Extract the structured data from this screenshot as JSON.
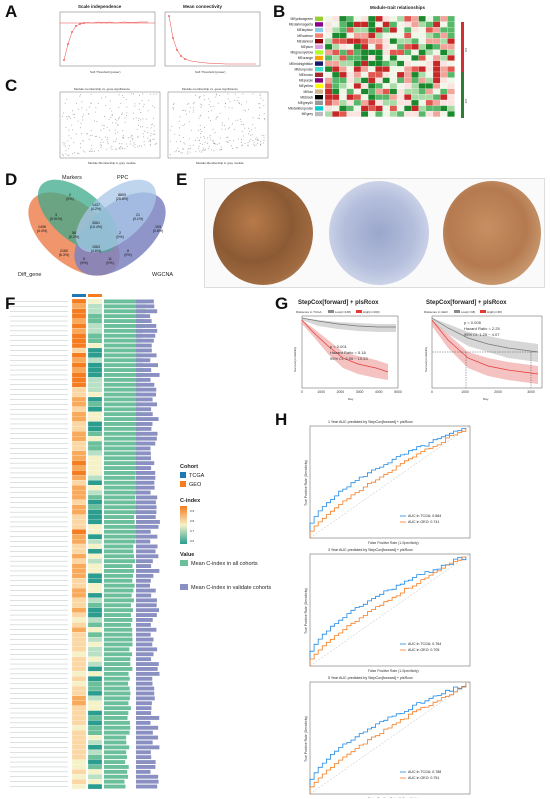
{
  "panels": {
    "A": {
      "label": "A",
      "titles": [
        "Scale independence",
        "Mean connectivity"
      ],
      "xlabels": [
        "Soft Threshold (power)",
        "Soft Threshold (power)"
      ]
    },
    "B": {
      "label": "B",
      "title": "Module-trait relationships",
      "modules": [
        "MEyellowgreen",
        "MEdarkmagenta",
        "MEskyblue",
        "MEsalmon",
        "MEdarkred",
        "MEplum",
        "MEgreenyellow",
        "MEorange",
        "MEmidnightblue",
        "MEturquoise",
        "MEbrown",
        "MEpurple",
        "MEyellow",
        "MEtan",
        "MEblack",
        "MEgrey60",
        "MEdarkturquoise",
        "MEgrey"
      ],
      "colors": [
        "#9acd32",
        "#8b008b",
        "#87ceeb",
        "#fa8072",
        "#8b0000",
        "#dda0dd",
        "#adff2f",
        "#ffa500",
        "#191970",
        "#40e0d0",
        "#a52a2a",
        "#800080",
        "#ffff00",
        "#d2b48c",
        "#000000",
        "#999999",
        "#00ced1",
        "#bbbbbb"
      ]
    },
    "C": {
      "label": "C"
    },
    "D": {
      "label": "D",
      "sets": [
        "Markers",
        "PPC",
        "Diff_gene",
        "WGCNA"
      ],
      "regions": [
        {
          "v": "1496",
          "p": "(4.4%)"
        },
        {
          "v": "0",
          "p": "(0%)"
        },
        {
          "v": "8809",
          "p": "(25.8%)"
        },
        {
          "v": "193",
          "p": "(0.6%)"
        },
        {
          "v": "3",
          "p": "(0.01%)"
        },
        {
          "v": "1437",
          "p": "(4.2%)"
        },
        {
          "v": "21",
          "p": "(0.1%)"
        },
        {
          "v": "58",
          "p": "(0.2%)"
        },
        {
          "v": "2",
          "p": "(0%)"
        },
        {
          "v": "1563",
          "p": "(4.6%)"
        },
        {
          "v": "5",
          "p": "(0%)"
        },
        {
          "v": "11",
          "p": "(0%)"
        },
        {
          "v": "2160",
          "p": "(6.3%)"
        },
        {
          "v": "8",
          "p": "(0%)"
        },
        {
          "v": "3561",
          "p": "(10.4%)"
        }
      ]
    },
    "E": {
      "label": "E"
    },
    "F": {
      "label": "F",
      "legend": {
        "cohort_title": "Cohort",
        "cohort_items": [
          "TCGA",
          "GEO"
        ],
        "cindex_title": "C-index",
        "cindex_ticks": [
          "0.9",
          "0.8",
          "0.7",
          "0.6"
        ],
        "value_title": "Value",
        "value_items": [
          "Mean C-index in all cohorts",
          "Mean C-index in validate cohorts"
        ]
      },
      "col_colors": {
        "tcga": "#1f77b4",
        "geo": "#f57c1f"
      }
    },
    "G": {
      "label": "G",
      "left": {
        "title": "StepCox[forward] + plsRcox",
        "legend": "Riskscore in TCGA",
        "groups": [
          "Low(n=168)",
          "High(n=169)"
        ],
        "stats": [
          "p < 0.001",
          "Hazard Ratio = 5.18",
          "95% CI: 2.55 − 10.53"
        ],
        "xlabel": "Day",
        "ylabel": "Survival probability",
        "xticks": [
          "0",
          "1000",
          "2000",
          "3000",
          "4000",
          "5000"
        ]
      },
      "right": {
        "title": "StepCox[forward] + plsRcox",
        "legend": "Riskscore in GEO",
        "groups": [
          "Low(n=48)",
          "High(n=48)"
        ],
        "stats": [
          "p = 0.008",
          "Hazard Ratio = 2.25",
          "95% CI: 1.25 − 4.07"
        ],
        "xlabel": "Day",
        "ylabel": "Survival probability",
        "xticks": [
          "0",
          "1000",
          "2000",
          "3000"
        ]
      }
    },
    "H": {
      "label": "H",
      "rocs": [
        {
          "title": "1 Year AUC predicted by StepCox[forward] + plsRcox",
          "auc1": "AUC in TCGA: 0.684",
          "auc2": "AUC in GEO: 0.741"
        },
        {
          "title": "3 Year AUC predicted by StepCox[forward] + plsRcox",
          "auc1": "AUC in TCGA: 0.764",
          "auc2": "AUC in GEO: 0.705"
        },
        {
          "title": "5 Year AUC predicted by StepCox[forward] + plsRcox",
          "auc1": "AUC in TCGA: 0.788",
          "auc2": "AUC in GEO: 0.751"
        }
      ],
      "xlabel": "False Positive Rate (1-Specificity)",
      "ylabel": "True Positive Rate (Sensitivity)"
    }
  }
}
